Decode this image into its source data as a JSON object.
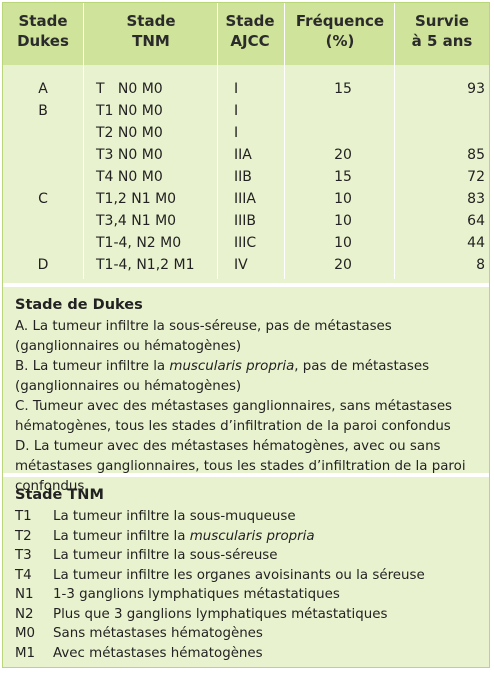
{
  "table": {
    "headers": [
      {
        "line1": "Stade",
        "line2": "Dukes"
      },
      {
        "line1": "Stade",
        "line2": "TNM"
      },
      {
        "line1": "Stade",
        "line2": "AJCC"
      },
      {
        "line1": "Fréquence",
        "line2": "(%)"
      },
      {
        "line1": "Survie",
        "line2": "à 5 ans"
      }
    ],
    "rows": [
      {
        "dukes": "A",
        "tnm": "T   N0 M0",
        "ajcc": "I",
        "freq": "15",
        "survie": "93"
      },
      {
        "dukes": "B",
        "tnm": "T1 N0 M0",
        "ajcc": "I",
        "freq": "",
        "survie": ""
      },
      {
        "dukes": "",
        "tnm": "T2 N0 M0",
        "ajcc": "I",
        "freq": "",
        "survie": ""
      },
      {
        "dukes": "",
        "tnm": "T3 N0 M0",
        "ajcc": "IIA",
        "freq": "20",
        "survie": "85"
      },
      {
        "dukes": "",
        "tnm": "T4 N0 M0",
        "ajcc": "IIB",
        "freq": "15",
        "survie": "72"
      },
      {
        "dukes": "C",
        "tnm": "T1,2 N1 M0",
        "ajcc": "IIIA",
        "freq": "10",
        "survie": "83"
      },
      {
        "dukes": "",
        "tnm": "T3,4 N1 M0",
        "ajcc": "IIIB",
        "freq": "10",
        "survie": "64"
      },
      {
        "dukes": "",
        "tnm": "T1-4, N2 M0",
        "ajcc": "IIIC",
        "freq": "10",
        "survie": "44"
      },
      {
        "dukes": "D",
        "tnm": "T1-4, N1,2 M1",
        "ajcc": "IV",
        "freq": "20",
        "survie": "8"
      }
    ]
  },
  "dukes_section": {
    "title": "Stade de Dukes",
    "a": "A. La tumeur infiltre la sous-séreuse, pas de métastases (ganglionnaires ou hématogènes)",
    "b_pre": "B. La tumeur infiltre la ",
    "b_em": "muscularis propria",
    "b_post": ", pas de métastases (ganglionnaires ou hématogènes)",
    "c": "C. Tumeur avec des métastases ganglionnaires, sans métastases hématogènes, tous les stades d’infiltration de la paroi confondus",
    "d": "D. La tumeur avec des métastases hématogènes, avec ou sans métastases ganglionnaires, tous les stades d’infiltration de la paroi confondus"
  },
  "tnm_section": {
    "title": "Stade TNM",
    "t1_code": "T1",
    "t1_desc": "La tumeur infiltre la sous-muqueuse",
    "t2_code": "T2",
    "t2_pre": "La tumeur infiltre la ",
    "t2_em": "muscularis propria",
    "t3_code": "T3",
    "t3_desc": "La tumeur infiltre la sous-séreuse",
    "t4_code": "T4",
    "t4_desc": "La tumeur infiltre les organes avoisinants ou la séreuse",
    "n1_code": "N1",
    "n1_desc": "1-3 ganglions lymphatiques métastatiques",
    "n2_code": "N2",
    "n2_desc": "Plus que 3 ganglions lymphatiques métastatiques",
    "m0_code": "M0",
    "m0_desc": "Sans métastases hématogènes",
    "m1_code": "M1",
    "m1_desc": "Avec métastases hématogènes"
  },
  "colors": {
    "header_bg": "#cfe39a",
    "body_bg": "#e9f2cf",
    "border": "#b9d77a"
  }
}
